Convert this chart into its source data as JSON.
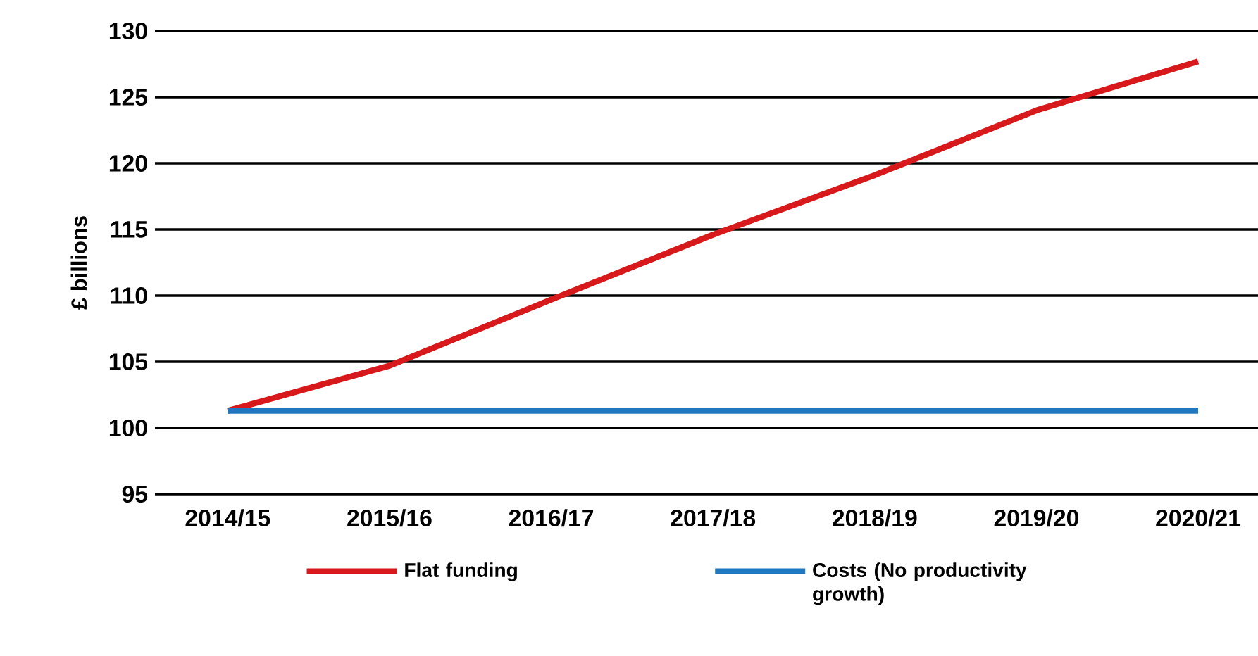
{
  "chart_data": {
    "type": "line",
    "ylabel": "£ billions",
    "categories": [
      "2014/15",
      "2015/16",
      "2016/17",
      "2017/18",
      "2018/19",
      "2019/20",
      "2020/21"
    ],
    "series": [
      {
        "name": "Flat funding",
        "color": "#d7191c",
        "values": [
          101.3,
          104.7,
          109.7,
          114.6,
          119.1,
          124.0,
          127.7
        ]
      },
      {
        "name": "Costs (No productivity growth)",
        "color": "#1f77c0",
        "values": [
          101.3,
          101.3,
          101.3,
          101.3,
          101.3,
          101.3,
          101.3
        ]
      }
    ],
    "ylim": [
      95,
      130
    ],
    "yticks": [
      95,
      100,
      105,
      110,
      115,
      120,
      125,
      130
    ],
    "grid": "y",
    "legend": "bottom",
    "marker": "none",
    "line_style": "solid"
  }
}
